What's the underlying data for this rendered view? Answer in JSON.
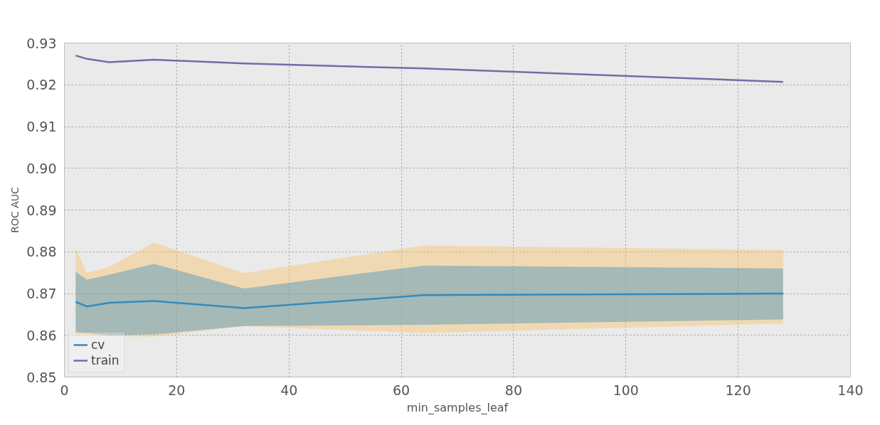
{
  "chart_data": {
    "type": "line",
    "xlabel": "min_samples_leaf",
    "ylabel": "ROC AUC",
    "x": [
      2,
      4,
      8,
      16,
      32,
      64,
      128
    ],
    "series": [
      {
        "name": null,
        "color": "#fbc15e",
        "values": [
          null,
          null,
          null,
          null,
          null,
          null,
          null
        ],
        "lower": [
          0.86,
          0.86,
          0.8598,
          0.8597,
          0.8622,
          0.8605,
          0.8628
        ],
        "upper": [
          0.8808,
          0.875,
          0.8764,
          0.8822,
          0.8749,
          0.8815,
          0.8804
        ]
      },
      {
        "name": "cv",
        "color": "#348abd",
        "values": [
          0.868,
          0.8669,
          0.8678,
          0.8682,
          0.8665,
          0.8696,
          0.87
        ],
        "lower": [
          0.8608,
          0.8605,
          0.86,
          0.8602,
          0.8622,
          0.8625,
          0.8638
        ],
        "upper": [
          0.8752,
          0.8733,
          0.8745,
          0.8771,
          0.8712,
          0.8767,
          0.876
        ]
      },
      {
        "name": "train",
        "color": "#7a68a6",
        "values": [
          0.927,
          0.9262,
          0.9254,
          0.926,
          0.9251,
          0.9239,
          0.9207
        ]
      }
    ],
    "xlim": [
      0,
      140
    ],
    "xticks": [
      0,
      20,
      40,
      60,
      80,
      100,
      120,
      140
    ],
    "ylim": [
      0.85,
      0.93
    ],
    "yticks": [
      {
        "value": 0.85,
        "label": "0.85"
      },
      {
        "value": 0.86,
        "label": "0.86"
      },
      {
        "value": 0.87,
        "label": "0.87"
      },
      {
        "value": 0.88,
        "label": "0.88"
      },
      {
        "value": 0.89,
        "label": "0.89"
      },
      {
        "value": 0.9,
        "label": "0.90"
      },
      {
        "value": 0.91,
        "label": "0.91"
      },
      {
        "value": 0.92,
        "label": "0.92"
      },
      {
        "value": 0.93,
        "label": "0.93"
      }
    ],
    "grid": true,
    "legend": "bottom left",
    "line_style": "solid"
  }
}
